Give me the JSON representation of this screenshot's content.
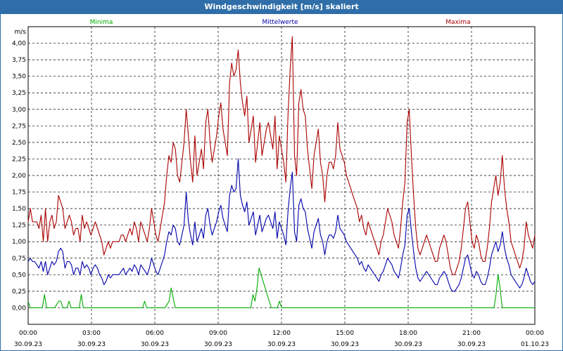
{
  "window": {
    "title": "Windgeschwindigkeit [m/s] skaliert"
  },
  "colors": {
    "minima": "#00aa00",
    "mittel": "#0000aa",
    "maxima": "#aa0000",
    "title_bg": "#2f6ea8"
  },
  "chart_data": {
    "type": "line",
    "title": "Windgeschwindigkeit [m/s] skaliert",
    "ylabel": "m/s",
    "xlabel": "",
    "ylim": [
      -0.25,
      4.25
    ],
    "xlim": [
      0,
      24
    ],
    "y_ticks": [
      "0,00",
      "0,25",
      "0,50",
      "0,75",
      "1,00",
      "1,25",
      "1,50",
      "1,75",
      "2,00",
      "2,25",
      "2,50",
      "2,75",
      "3,00",
      "3,25",
      "3,50",
      "3,75",
      "4,00"
    ],
    "x_ticks": [
      {
        "time": "00:00",
        "date": "30.09.23"
      },
      {
        "time": "03:00",
        "date": "30.09.23"
      },
      {
        "time": "06:00",
        "date": "30.09.23"
      },
      {
        "time": "09:00",
        "date": "30.09.23"
      },
      {
        "time": "12:00",
        "date": "30.09.23"
      },
      {
        "time": "15:00",
        "date": "30.09.23"
      },
      {
        "time": "18:00",
        "date": "30.09.23"
      },
      {
        "time": "21:00",
        "date": "30.09.23"
      },
      {
        "time": "00:00",
        "date": "01.10.23"
      }
    ],
    "grid": true,
    "series": [
      {
        "name": "Maxima",
        "color": "#aa0000",
        "values": [
          1.3,
          1.5,
          1.3,
          1.3,
          1.3,
          1.2,
          1.4,
          1.0,
          1.5,
          1.0,
          1.3,
          1.4,
          1.2,
          1.3,
          1.7,
          1.6,
          1.5,
          1.2,
          1.3,
          1.4,
          1.3,
          1.1,
          1.2,
          1.2,
          1.0,
          1.4,
          1.2,
          1.3,
          1.2,
          1.1,
          1.2,
          1.3,
          1.2,
          1.1,
          1.0,
          0.8,
          0.9,
          1.0,
          0.9,
          1.0,
          1.0,
          1.0,
          1.0,
          1.1,
          1.1,
          1.0,
          1.1,
          1.2,
          1.1,
          1.3,
          1.2,
          1.0,
          1.3,
          1.2,
          1.1,
          1.0,
          1.2,
          1.5,
          1.3,
          1.1,
          1.0,
          1.2,
          1.4,
          1.6,
          2.0,
          2.3,
          2.2,
          2.5,
          2.4,
          2.0,
          1.9,
          2.2,
          2.5,
          3.0,
          2.6,
          2.2,
          1.9,
          2.6,
          2.0,
          2.2,
          2.4,
          2.1,
          2.8,
          3.0,
          2.5,
          2.2,
          2.4,
          2.6,
          2.9,
          3.1,
          2.7,
          2.5,
          2.3,
          3.4,
          3.7,
          3.5,
          3.6,
          3.9,
          3.4,
          3.1,
          2.9,
          3.2,
          2.5,
          2.7,
          2.9,
          2.2,
          2.5,
          2.8,
          2.3,
          2.5,
          2.7,
          2.8,
          2.6,
          2.4,
          2.9,
          2.1,
          2.6,
          2.4,
          2.2,
          1.9,
          2.9,
          3.6,
          4.1,
          2.3,
          2.0,
          3.1,
          3.3,
          3.0,
          2.9,
          2.4,
          2.1,
          1.8,
          2.3,
          2.5,
          2.7,
          2.2,
          2.0,
          1.6,
          2.0,
          2.2,
          2.2,
          2.1,
          2.3,
          2.8,
          2.4,
          2.3,
          2.2,
          2.0,
          1.9,
          1.8,
          1.7,
          1.6,
          1.5,
          1.3,
          1.4,
          1.2,
          1.1,
          1.3,
          1.2,
          1.1,
          1.0,
          0.9,
          0.8,
          1.0,
          1.1,
          1.3,
          1.5,
          1.4,
          1.3,
          1.1,
          1.0,
          0.9,
          1.2,
          1.6,
          1.9,
          2.8,
          3.0,
          2.3,
          1.7,
          1.2,
          0.9,
          0.8,
          0.9,
          1.0,
          1.1,
          1.0,
          0.9,
          0.8,
          0.7,
          0.7,
          0.9,
          1.0,
          1.1,
          1.0,
          0.8,
          0.6,
          0.5,
          0.5,
          0.6,
          0.7,
          0.9,
          1.2,
          1.5,
          1.6,
          1.3,
          1.0,
          0.9,
          1.1,
          1.0,
          0.8,
          0.7,
          0.7,
          0.9,
          1.2,
          1.6,
          1.8,
          2.0,
          1.7,
          1.9,
          2.3,
          1.8,
          1.5,
          1.3,
          1.0,
          0.9,
          0.8,
          0.7,
          0.6,
          0.7,
          0.9,
          1.3,
          1.1,
          1.0,
          0.9,
          1.1
        ]
      },
      {
        "name": "Mittelwerte",
        "color": "#0000aa",
        "values": [
          0.7,
          0.75,
          0.7,
          0.7,
          0.65,
          0.6,
          0.7,
          0.55,
          0.7,
          0.5,
          0.6,
          0.7,
          0.65,
          0.7,
          0.85,
          0.9,
          0.85,
          0.6,
          0.7,
          0.7,
          0.65,
          0.5,
          0.6,
          0.6,
          0.5,
          0.7,
          0.6,
          0.65,
          0.6,
          0.5,
          0.6,
          0.65,
          0.6,
          0.5,
          0.45,
          0.35,
          0.4,
          0.5,
          0.45,
          0.5,
          0.5,
          0.5,
          0.5,
          0.55,
          0.6,
          0.5,
          0.55,
          0.6,
          0.55,
          0.65,
          0.6,
          0.5,
          0.65,
          0.6,
          0.55,
          0.5,
          0.6,
          0.75,
          0.65,
          0.55,
          0.5,
          0.6,
          0.7,
          0.8,
          1.0,
          1.15,
          1.1,
          1.25,
          1.2,
          1.0,
          0.95,
          1.1,
          1.25,
          1.75,
          1.3,
          1.1,
          0.95,
          1.3,
          1.0,
          1.1,
          1.2,
          1.05,
          1.4,
          1.5,
          1.25,
          1.1,
          1.2,
          1.3,
          1.45,
          1.55,
          1.35,
          1.25,
          1.15,
          1.7,
          1.85,
          1.75,
          1.8,
          2.25,
          1.7,
          1.55,
          1.45,
          1.6,
          1.25,
          1.35,
          1.45,
          1.1,
          1.25,
          1.4,
          1.15,
          1.25,
          1.35,
          1.4,
          1.3,
          1.2,
          1.45,
          1.05,
          1.3,
          1.2,
          1.1,
          0.95,
          1.45,
          1.8,
          2.05,
          1.15,
          1.0,
          1.55,
          1.65,
          1.5,
          1.45,
          1.2,
          1.05,
          0.9,
          1.15,
          1.25,
          1.35,
          1.1,
          1.0,
          0.8,
          1.0,
          1.1,
          1.1,
          1.05,
          1.15,
          1.4,
          1.2,
          1.15,
          1.1,
          1.0,
          0.95,
          0.9,
          0.85,
          0.8,
          0.75,
          0.65,
          0.7,
          0.6,
          0.55,
          0.65,
          0.6,
          0.55,
          0.5,
          0.45,
          0.4,
          0.5,
          0.55,
          0.65,
          0.75,
          0.7,
          0.65,
          0.55,
          0.5,
          0.45,
          0.6,
          0.8,
          0.95,
          1.4,
          1.5,
          1.15,
          0.85,
          0.6,
          0.45,
          0.4,
          0.45,
          0.5,
          0.55,
          0.5,
          0.45,
          0.4,
          0.35,
          0.35,
          0.45,
          0.5,
          0.55,
          0.5,
          0.4,
          0.3,
          0.25,
          0.25,
          0.3,
          0.35,
          0.45,
          0.6,
          0.75,
          0.8,
          0.65,
          0.5,
          0.45,
          0.55,
          0.5,
          0.4,
          0.35,
          0.35,
          0.45,
          0.6,
          0.8,
          0.9,
          1.0,
          0.85,
          0.95,
          1.15,
          0.9,
          0.75,
          0.65,
          0.5,
          0.45,
          0.4,
          0.35,
          0.3,
          0.35,
          0.45,
          0.6,
          0.5,
          0.4,
          0.35,
          0.4
        ]
      },
      {
        "name": "Minima",
        "color": "#00aa00",
        "values": [
          0.1,
          0,
          0,
          0,
          0,
          0,
          0,
          0,
          0.2,
          0,
          0,
          0,
          0,
          0,
          0.05,
          0.1,
          0.1,
          0,
          0,
          0,
          0.1,
          0,
          0,
          0,
          0,
          0,
          0.2,
          0,
          0,
          0,
          0,
          0,
          0,
          0,
          0,
          0,
          0,
          0,
          0,
          0,
          0,
          0,
          0,
          0,
          0,
          0,
          0,
          0,
          0,
          0,
          0,
          0,
          0,
          0,
          0,
          0,
          0,
          0.1,
          0,
          0,
          0,
          0,
          0,
          0,
          0,
          0,
          0,
          0,
          0.05,
          0.1,
          0.3,
          0.15,
          0,
          0,
          0,
          0,
          0,
          0,
          0,
          0,
          0,
          0,
          0,
          0,
          0,
          0,
          0,
          0,
          0,
          0,
          0,
          0,
          0,
          0,
          0,
          0,
          0,
          0,
          0,
          0,
          0,
          0,
          0,
          0,
          0,
          0,
          0,
          0,
          0,
          0,
          0.2,
          0.1,
          0.3,
          0.6,
          0.5,
          0.4,
          0.3,
          0.2,
          0.1,
          0,
          0,
          0,
          0,
          0.1,
          0,
          0,
          0,
          0,
          0,
          0,
          0,
          0,
          0,
          0,
          0,
          0,
          0,
          0,
          0,
          0,
          0,
          0,
          0,
          0,
          0,
          0,
          0,
          0,
          0,
          0,
          0,
          0,
          0,
          0,
          0,
          0,
          0,
          0,
          0,
          0,
          0,
          0,
          0,
          0,
          0,
          0,
          0,
          0,
          0,
          0,
          0,
          0,
          0,
          0,
          0,
          0,
          0,
          0,
          0,
          0,
          0,
          0,
          0,
          0,
          0,
          0,
          0,
          0,
          0,
          0,
          0,
          0,
          0,
          0,
          0,
          0,
          0,
          0,
          0,
          0,
          0,
          0,
          0,
          0,
          0,
          0,
          0,
          0,
          0,
          0,
          0,
          0,
          0,
          0,
          0,
          0,
          0,
          0,
          0,
          0,
          0,
          0,
          0,
          0,
          0,
          0,
          0,
          0,
          0,
          0.2,
          0.5,
          0.3,
          0,
          0,
          0,
          0,
          0,
          0,
          0,
          0,
          0,
          0,
          0,
          0,
          0,
          0,
          0,
          0,
          0
        ]
      }
    ]
  }
}
